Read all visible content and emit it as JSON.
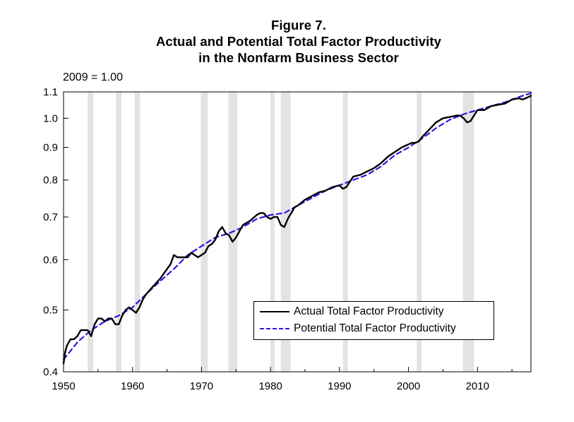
{
  "title": {
    "line1": "Figure 7.",
    "line2": "Actual and Potential Total Factor Productivity",
    "line3": "in the Nonfarm Business Sector"
  },
  "unit_note": "2009 = 1.00",
  "chart_data": {
    "type": "line",
    "title": "Actual and Potential Total Factor Productivity in the Nonfarm Business Sector",
    "xlabel": "",
    "ylabel": "",
    "y_scale": "log",
    "xlim": [
      1950,
      2017.75
    ],
    "ylim": [
      0.4,
      1.1
    ],
    "x_ticks": [
      1950,
      1960,
      1970,
      1980,
      1990,
      2000,
      2010
    ],
    "y_ticks": [
      0.4,
      0.5,
      0.6,
      0.7,
      0.8,
      0.9,
      1.0,
      1.1
    ],
    "y_tick_labels": [
      "0.4",
      "0.5",
      "0.6",
      "0.7",
      "0.8",
      "0.9",
      "1.0",
      "1.1"
    ],
    "grid": false,
    "legend_position": "bottom-right",
    "recession_shading": [
      [
        1953.5,
        1954.3
      ],
      [
        1957.6,
        1958.4
      ],
      [
        1960.3,
        1961.1
      ],
      [
        1969.9,
        1970.9
      ],
      [
        1973.9,
        1975.2
      ],
      [
        1980.0,
        1980.6
      ],
      [
        1981.5,
        1982.9
      ],
      [
        1990.5,
        1991.2
      ],
      [
        2001.2,
        2001.9
      ],
      [
        2007.9,
        2009.5
      ]
    ],
    "series": [
      {
        "name": "Actual Total Factor Productivity",
        "color": "#000000",
        "style": "solid",
        "x": [
          1950.0,
          1950.25,
          1950.5,
          1951.0,
          1951.5,
          1952.0,
          1952.5,
          1953.0,
          1953.5,
          1954.0,
          1954.5,
          1955.0,
          1955.5,
          1956.0,
          1956.5,
          1957.0,
          1957.5,
          1958.0,
          1958.5,
          1959.0,
          1959.5,
          1960.0,
          1960.5,
          1961.0,
          1961.5,
          1962.0,
          1963.0,
          1964.0,
          1965.0,
          1965.5,
          1966.0,
          1966.5,
          1967.0,
          1968.0,
          1968.5,
          1969.0,
          1969.5,
          1970.0,
          1970.5,
          1971.0,
          1971.5,
          1972.0,
          1972.5,
          1973.0,
          1973.5,
          1974.0,
          1974.5,
          1975.0,
          1975.5,
          1976.0,
          1977.0,
          1978.0,
          1978.5,
          1979.0,
          1979.5,
          1980.0,
          1980.5,
          1981.0,
          1981.5,
          1982.0,
          1982.5,
          1983.0,
          1983.5,
          1984.0,
          1985.0,
          1986.0,
          1987.0,
          1988.0,
          1989.0,
          1990.0,
          1990.5,
          1991.0,
          1991.5,
          1992.0,
          1993.0,
          1994.0,
          1995.0,
          1996.0,
          1997.0,
          1998.0,
          1999.0,
          2000.0,
          2000.5,
          2001.0,
          2001.5,
          2002.0,
          2003.0,
          2004.0,
          2005.0,
          2006.0,
          2007.0,
          2007.5,
          2008.0,
          2008.5,
          2009.0,
          2009.5,
          2010.0,
          2011.0,
          2012.0,
          2013.0,
          2014.0,
          2015.0,
          2016.0,
          2016.5,
          2017.0,
          2017.75
        ],
        "values": [
          0.412,
          0.43,
          0.44,
          0.45,
          0.45,
          0.455,
          0.465,
          0.465,
          0.465,
          0.455,
          0.475,
          0.485,
          0.485,
          0.48,
          0.485,
          0.485,
          0.475,
          0.475,
          0.49,
          0.5,
          0.505,
          0.5,
          0.495,
          0.505,
          0.52,
          0.53,
          0.545,
          0.56,
          0.58,
          0.59,
          0.61,
          0.605,
          0.605,
          0.605,
          0.615,
          0.61,
          0.605,
          0.61,
          0.615,
          0.63,
          0.635,
          0.645,
          0.665,
          0.675,
          0.66,
          0.655,
          0.64,
          0.65,
          0.665,
          0.68,
          0.69,
          0.705,
          0.71,
          0.71,
          0.7,
          0.695,
          0.7,
          0.7,
          0.68,
          0.675,
          0.695,
          0.71,
          0.725,
          0.73,
          0.745,
          0.755,
          0.765,
          0.77,
          0.78,
          0.785,
          0.775,
          0.78,
          0.795,
          0.81,
          0.815,
          0.825,
          0.835,
          0.85,
          0.87,
          0.885,
          0.9,
          0.91,
          0.915,
          0.915,
          0.92,
          0.935,
          0.96,
          0.985,
          1.0,
          1.005,
          1.01,
          1.01,
          1.0,
          0.985,
          0.99,
          1.01,
          1.03,
          1.03,
          1.045,
          1.05,
          1.055,
          1.07,
          1.075,
          1.07,
          1.075,
          1.085
        ]
      },
      {
        "name": "Potential Total Factor Productivity",
        "color": "#3a10e6",
        "style": "dashed",
        "x": [
          1950.0,
          1952.0,
          1954.0,
          1956.0,
          1958.0,
          1960.0,
          1962.0,
          1964.0,
          1966.0,
          1968.0,
          1970.0,
          1972.0,
          1974.0,
          1976.0,
          1978.0,
          1980.0,
          1982.0,
          1984.0,
          1986.0,
          1988.0,
          1990.0,
          1992.0,
          1994.0,
          1996.0,
          1998.0,
          2000.0,
          2002.0,
          2004.0,
          2006.0,
          2008.0,
          2010.0,
          2012.0,
          2014.0,
          2016.0,
          2017.75
        ],
        "values": [
          0.418,
          0.445,
          0.465,
          0.48,
          0.49,
          0.505,
          0.53,
          0.555,
          0.58,
          0.61,
          0.63,
          0.65,
          0.66,
          0.675,
          0.695,
          0.705,
          0.71,
          0.73,
          0.75,
          0.77,
          0.785,
          0.8,
          0.815,
          0.84,
          0.875,
          0.9,
          0.93,
          0.965,
          0.995,
          1.015,
          1.03,
          1.045,
          1.06,
          1.08,
          1.095
        ]
      }
    ]
  }
}
